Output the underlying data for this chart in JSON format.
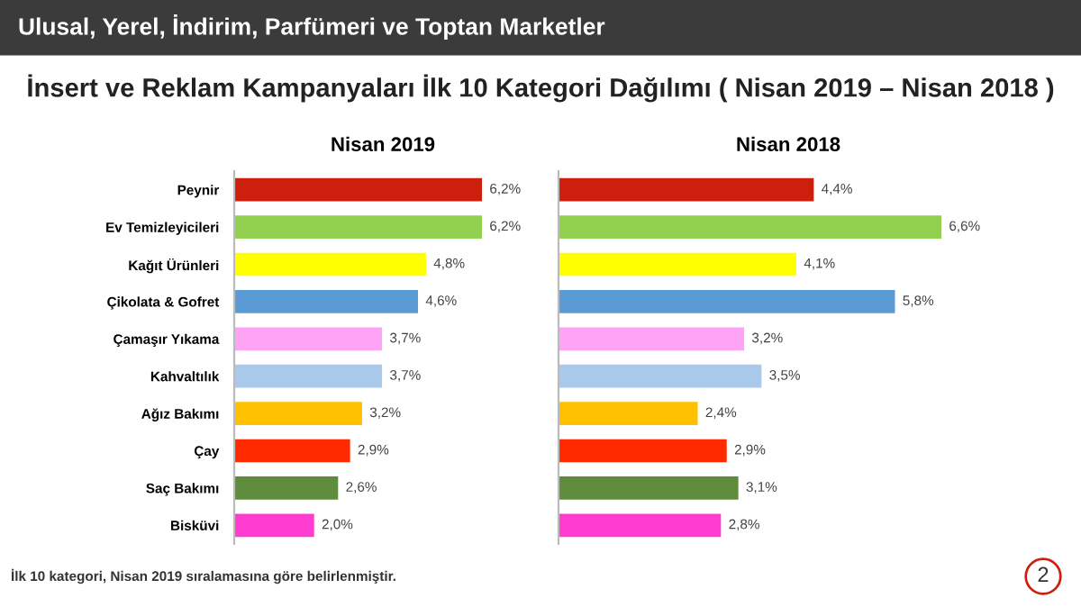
{
  "chart_data": [
    {
      "type": "other",
      "title": "İnsert ve Reklam Kampanyaları İlk 10 Kategori Dağılımı ( Nisan 2019 – Nisan 2018 )",
      "subtitle": "Ulusal, Yerel, İndirim, Parfümeri ve Toptan Marketler",
      "annotations": [
        "İlk 10 kategori, Nisan 2019 sıralamasına göre belirlenmiştir.",
        "2"
      ]
    },
    {
      "type": "bar",
      "orientation": "horizontal",
      "title": "Nisan 2019",
      "categories": [
        "Peynir",
        "Ev Temizleyicileri",
        "Kağıt Ürünleri",
        "Çikolata & Gofret",
        "Çamaşır Yıkama",
        "Kahvaltılık",
        "Ağız Bakımı",
        "Çay",
        "Saç Bakımı",
        "Bisküvi"
      ],
      "values": [
        6.2,
        6.2,
        4.8,
        4.6,
        3.7,
        3.7,
        3.2,
        2.9,
        2.6,
        2.0
      ],
      "value_labels": [
        "6,2%",
        "6,2%",
        "4,8%",
        "4,6%",
        "3,7%",
        "3,7%",
        "3,2%",
        "2,9%",
        "2,6%",
        "2,0%"
      ],
      "colors": [
        "#cc1f0e",
        "#92d050",
        "#ffff00",
        "#5b9bd5",
        "#ffa3f5",
        "#a9c9ea",
        "#ffc000",
        "#ff2a00",
        "#5e8c3c",
        "#ff3ccf"
      ]
    },
    {
      "type": "bar",
      "orientation": "horizontal",
      "title": "Nisan 2018",
      "categories": [
        null,
        null,
        null,
        null,
        null,
        null,
        null,
        null,
        null,
        null
      ],
      "values": [
        4.4,
        6.6,
        4.1,
        5.8,
        3.2,
        3.5,
        2.4,
        2.9,
        3.1,
        2.8
      ],
      "value_labels": [
        "4,4%",
        "6,6%",
        "4,1%",
        "5,8%",
        "3,2%",
        "3,5%",
        "2,4%",
        "2,9%",
        "3,1%",
        "2,8%"
      ],
      "colors": [
        "#cc1f0e",
        "#92d050",
        "#ffff00",
        "#5b9bd5",
        "#ffa3f5",
        "#a9c9ea",
        "#ffc000",
        "#ff2a00",
        "#5e8c3c",
        "#ff3ccf"
      ]
    }
  ]
}
